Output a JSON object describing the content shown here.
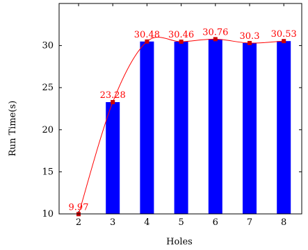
{
  "chart_data": {
    "type": "bar",
    "title": "",
    "xlabel": "Holes",
    "ylabel": "Run Time(s)",
    "categories": [
      "2",
      "3",
      "4",
      "5",
      "6",
      "7",
      "8"
    ],
    "series": [
      {
        "type": "bar",
        "values": [
          9.97,
          23.28,
          30.48,
          30.46,
          30.76,
          30.3,
          30.53
        ]
      },
      {
        "type": "line",
        "values": [
          9.97,
          23.28,
          30.48,
          30.46,
          30.76,
          30.3,
          30.53
        ],
        "marker": "square"
      }
    ],
    "data_labels": [
      "9.97",
      "23.28",
      "30.48",
      "30.46",
      "30.76",
      "30.3",
      "30.53"
    ],
    "yticks": [
      10,
      15,
      20,
      25,
      30
    ],
    "ylim": [
      10,
      35
    ],
    "grid": false,
    "colors": {
      "bar": "#0000ff",
      "line": "#ff0000",
      "marker": "#cc0000",
      "label": "#ff0000",
      "axis": "#000000"
    }
  }
}
